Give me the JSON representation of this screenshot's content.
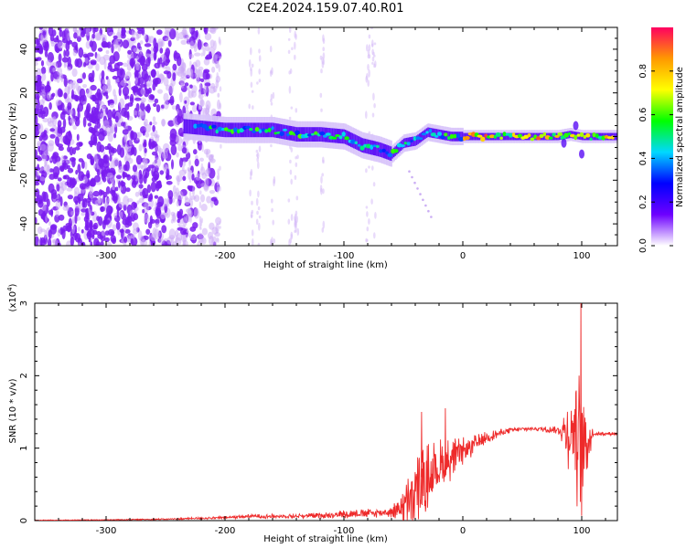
{
  "title": "C2E4.2024.159.07.40.R01",
  "chart_data": [
    {
      "type": "heatmap",
      "xlabel": "Height of straight line (km)",
      "ylabel": "Frequency (Hz)",
      "xlim": [
        -360,
        130
      ],
      "ylim": [
        -50,
        50
      ],
      "xticks": [
        -300,
        -200,
        -100,
        0,
        100
      ],
      "yticks": [
        -40,
        -20,
        0,
        20,
        40
      ],
      "colorbar": {
        "label": "Normalized spectral amplitude",
        "ticks": [
          "0.0",
          "0.2",
          "0.4",
          "0.6",
          "0.8"
        ],
        "range": [
          0,
          1
        ],
        "colors": [
          "#ffffff",
          "#6d00ff",
          "#0000ff",
          "#00d8ff",
          "#00ff00",
          "#ffff00",
          "#ff9900",
          "#ff0060"
        ]
      },
      "ridge": {
        "x": [
          -240,
          -220,
          -200,
          -180,
          -160,
          -140,
          -120,
          -100,
          -85,
          -70,
          -60,
          -50,
          -40,
          -30,
          -20,
          -10,
          0,
          20,
          40,
          60,
          80,
          90,
          100,
          110,
          130
        ],
        "freq": [
          5,
          4,
          3,
          3,
          3,
          1,
          1,
          0,
          -4,
          -6,
          -8,
          -3,
          -2,
          2,
          1,
          0,
          0,
          0,
          0,
          0,
          0,
          1,
          0,
          0,
          0
        ]
      },
      "noise_region": [
        -360,
        -205
      ]
    },
    {
      "type": "line",
      "xlabel": "Height of straight line (km)",
      "ylabel": "SNR (10 * v/v)",
      "y_scale_label": "(x10",
      "y_scale_exp": "4",
      "y_scale_close": ")",
      "xlim": [
        -360,
        130
      ],
      "ylim": [
        0,
        3
      ],
      "xticks": [
        -300,
        -200,
        -100,
        0,
        100
      ],
      "yticks": [
        0,
        1,
        2,
        3
      ],
      "color": "#ff2020",
      "envelope": {
        "x": [
          -360,
          -300,
          -250,
          -200,
          -180,
          -150,
          -120,
          -100,
          -80,
          -60,
          -50,
          -40,
          -30,
          -20,
          -10,
          0,
          20,
          40,
          60,
          80,
          85,
          90,
          95,
          100,
          105,
          110,
          130
        ],
        "mid": [
          0.005,
          0.01,
          0.02,
          0.04,
          0.06,
          0.06,
          0.07,
          0.09,
          0.1,
          0.12,
          0.2,
          0.35,
          0.6,
          0.75,
          0.85,
          0.95,
          1.15,
          1.25,
          1.27,
          1.25,
          1.25,
          1.2,
          1.3,
          0.9,
          1.1,
          1.2,
          1.2
        ],
        "amp": [
          0.005,
          0.005,
          0.01,
          0.02,
          0.03,
          0.03,
          0.04,
          0.06,
          0.06,
          0.08,
          0.25,
          0.55,
          0.5,
          0.4,
          0.3,
          0.2,
          0.08,
          0.04,
          0.03,
          0.05,
          0.25,
          0.6,
          1.0,
          1.2,
          0.4,
          0.03,
          0.02
        ]
      },
      "peaks": [
        {
          "x": 99,
          "y": 3.05
        },
        {
          "x": -35,
          "y": 1.5
        },
        {
          "x": -15,
          "y": 1.55
        }
      ]
    }
  ]
}
